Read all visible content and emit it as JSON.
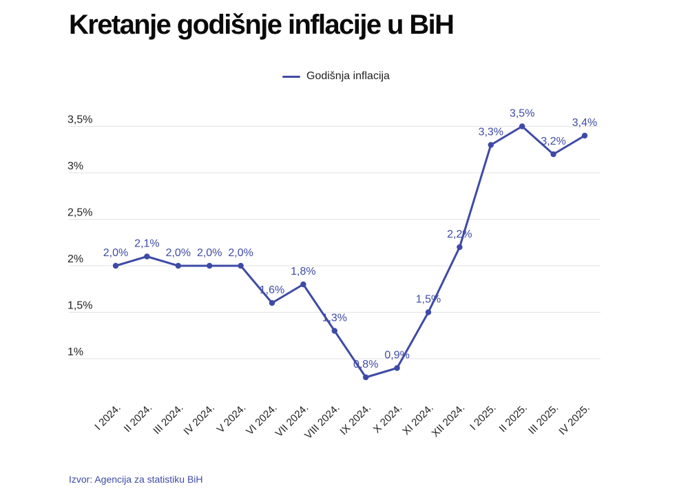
{
  "header": {
    "title": "Kretanje godišnje inflacije u BiH"
  },
  "footer": {
    "source": "Izvor: Agencija za statistiku BiH"
  },
  "colors": {
    "series": "#3e4aa5",
    "grid": "#e2e2e2"
  },
  "chart_data": {
    "type": "line",
    "title": "Kretanje godišnje inflacije u BiH",
    "xlabel": "",
    "ylabel": "",
    "categories": [
      "I 2024.",
      "II 2024.",
      "III 2024.",
      "IV 2024.",
      "V 2024.",
      "VI 2024.",
      "VII 2024.",
      "VIII 2024.",
      "IX 2024.",
      "X 2024.",
      "XI 2024.",
      "XII 2024.",
      "I 2025.",
      "II 2025.",
      "III 2025.",
      "IV 2025."
    ],
    "series": [
      {
        "name": "Godišnja inflacija",
        "values": [
          2.0,
          2.1,
          2.0,
          2.0,
          2.0,
          1.6,
          1.8,
          1.3,
          0.8,
          0.9,
          1.5,
          2.2,
          3.3,
          3.5,
          3.2,
          3.4
        ],
        "labels": [
          "2,0%",
          "2,1%",
          "2,0%",
          "2,0%",
          "2,0%",
          "1,6%",
          "1,8%",
          "1,3%",
          "0,8%",
          "0,9%",
          "1,5%",
          "2,2%",
          "3,3%",
          "3,5%",
          "3,2%",
          "3,4%"
        ]
      }
    ],
    "yticks": [
      1,
      1.5,
      2,
      2.5,
      3,
      3.5
    ],
    "ytick_labels": [
      "1%",
      "1,5%",
      "2%",
      "2,5%",
      "3%",
      "3,5%"
    ],
    "grid": true,
    "legend_position": "top-center"
  }
}
